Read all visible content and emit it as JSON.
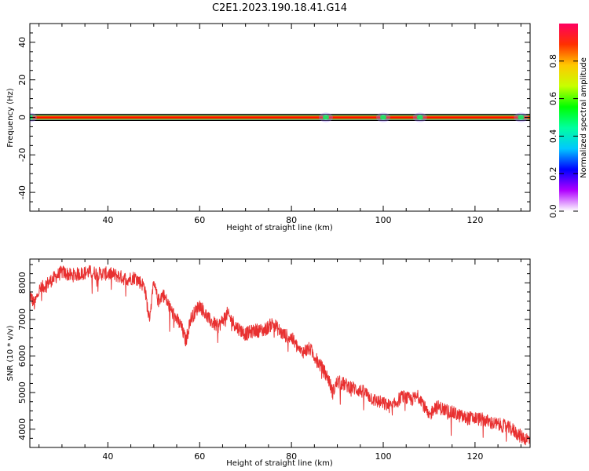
{
  "title": "C2E1.2023.190.18.41.G14",
  "chart_data": [
    {
      "type": "heatmap",
      "name": "spectrogram",
      "xlabel": "Height of straight line (km)",
      "ylabel": "Frequency (Hz)",
      "xlim": [
        23,
        132
      ],
      "ylim": [
        -50,
        50
      ],
      "xticks": [
        40,
        60,
        80,
        100,
        120
      ],
      "yticks": [
        -40,
        -20,
        0,
        20,
        40
      ],
      "ytick_labels": [
        "-40",
        "-20",
        "0",
        "20",
        "40"
      ],
      "band_center_hz": 0,
      "blobs_km": [
        23,
        87.5,
        100,
        108,
        130
      ],
      "colorbar": {
        "label": "Normalized spectral amplitude",
        "range": [
          0,
          1
        ],
        "ticks": [
          0.0,
          0.2,
          0.4,
          0.6,
          0.8
        ],
        "tick_labels": [
          "0.0",
          "0.2",
          "0.4",
          "0.6",
          "0.8"
        ],
        "colors": [
          "#ffffff",
          "#b000ff",
          "#0000ff",
          "#00c8ff",
          "#00ffa0",
          "#00ff00",
          "#c8ff00",
          "#ffc800",
          "#ff3000",
          "#ff0060"
        ]
      }
    },
    {
      "type": "line",
      "name": "snr",
      "xlabel": "Height of straight line (km)",
      "ylabel": "SNR (10 * v/v)",
      "xlim": [
        23,
        132
      ],
      "ylim": [
        3500,
        8650
      ],
      "xticks": [
        40,
        60,
        80,
        100,
        120
      ],
      "yticks": [
        4000,
        5000,
        6000,
        7000,
        8000
      ],
      "color": "#e83030",
      "x": [
        23,
        24,
        25,
        26,
        27,
        28,
        29,
        30,
        32,
        34,
        36,
        38,
        40,
        42,
        44,
        46,
        48,
        49,
        50,
        51,
        52,
        54,
        55,
        56,
        57,
        58,
        60,
        61,
        62,
        64,
        66,
        68,
        70,
        72,
        74,
        76,
        78,
        80,
        82,
        84,
        86,
        87,
        88,
        89,
        90,
        92,
        94,
        96,
        98,
        100,
        102,
        104,
        106,
        108,
        110,
        111,
        112,
        114,
        116,
        118,
        120,
        122,
        124,
        126,
        128,
        130,
        132
      ],
      "y": [
        7700,
        7400,
        7800,
        7900,
        8000,
        8100,
        8200,
        8300,
        8200,
        8250,
        8300,
        8250,
        8250,
        8200,
        8100,
        8150,
        7900,
        7000,
        7950,
        7500,
        7700,
        7200,
        7000,
        6800,
        6400,
        7000,
        7400,
        7200,
        7000,
        6800,
        7150,
        6800,
        6600,
        6700,
        6700,
        6900,
        6600,
        6500,
        6100,
        6200,
        5800,
        5600,
        5400,
        5000,
        5300,
        5200,
        5100,
        5000,
        4800,
        4700,
        4600,
        4900,
        4800,
        4900,
        4300,
        4600,
        4600,
        4500,
        4400,
        4300,
        4300,
        4250,
        4150,
        4100,
        4000,
        3800,
        3700
      ]
    }
  ]
}
